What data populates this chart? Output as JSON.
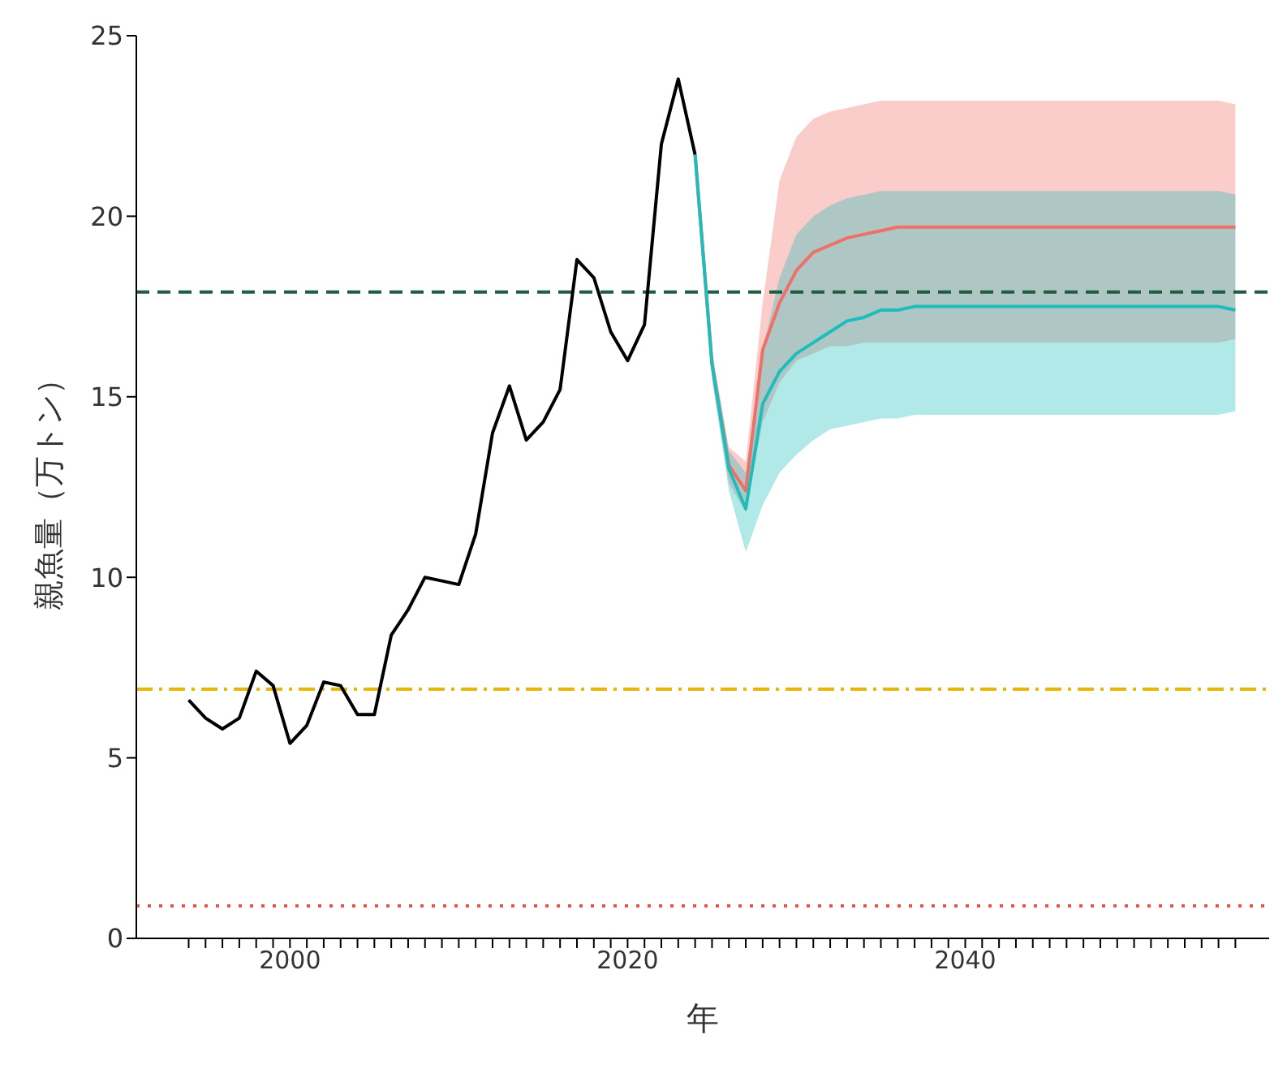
{
  "chart_data": {
    "type": "line",
    "xlabel": "年",
    "ylabel": "親魚量（万トン）",
    "xlim": [
      1990.9,
      2058
    ],
    "ylim": [
      0,
      25
    ],
    "yticks": [
      0,
      5,
      10,
      15,
      20,
      25
    ],
    "xticks": [
      {
        "value": 1994,
        "label": null
      },
      {
        "value": 1995,
        "label": null
      },
      {
        "value": 1996,
        "label": null
      },
      {
        "value": 1997,
        "label": null
      },
      {
        "value": 1998,
        "label": null
      },
      {
        "value": 1999,
        "label": null
      },
      2000,
      {
        "value": 2001,
        "label": null
      },
      {
        "value": 2002,
        "label": null
      },
      {
        "value": 2003,
        "label": null
      },
      {
        "value": 2004,
        "label": null
      },
      {
        "value": 2005,
        "label": null
      },
      {
        "value": 2006,
        "label": null
      },
      {
        "value": 2007,
        "label": null
      },
      {
        "value": 2008,
        "label": null
      },
      {
        "value": 2009,
        "label": null
      },
      {
        "value": 2010,
        "label": null
      },
      {
        "value": 2011,
        "label": null
      },
      {
        "value": 2012,
        "label": null
      },
      {
        "value": 2013,
        "label": null
      },
      {
        "value": 2014,
        "label": null
      },
      {
        "value": 2015,
        "label": null
      },
      {
        "value": 2016,
        "label": null
      },
      {
        "value": 2017,
        "label": null
      },
      {
        "value": 2018,
        "label": null
      },
      {
        "value": 2019,
        "label": null
      },
      2020,
      {
        "value": 2021,
        "label": null
      },
      {
        "value": 2022,
        "label": null
      },
      {
        "value": 2023,
        "label": null
      },
      {
        "value": 2024,
        "label": null
      },
      {
        "value": 2025,
        "label": null
      },
      {
        "value": 2026,
        "label": null
      },
      {
        "value": 2027,
        "label": null
      },
      {
        "value": 2028,
        "label": null
      },
      {
        "value": 2029,
        "label": null
      },
      {
        "value": 2030,
        "label": null
      },
      {
        "value": 2031,
        "label": null
      },
      {
        "value": 2032,
        "label": null
      },
      {
        "value": 2033,
        "label": null
      },
      {
        "value": 2034,
        "label": null
      },
      {
        "value": 2035,
        "label": null
      },
      {
        "value": 2036,
        "label": null
      },
      {
        "value": 2037,
        "label": null
      },
      {
        "value": 2038,
        "label": null
      },
      {
        "value": 2039,
        "label": null
      },
      2040,
      {
        "value": 2041,
        "label": null
      },
      {
        "value": 2042,
        "label": null
      },
      {
        "value": 2043,
        "label": null
      },
      {
        "value": 2044,
        "label": null
      },
      {
        "value": 2045,
        "label": null
      },
      {
        "value": 2046,
        "label": null
      },
      {
        "value": 2047,
        "label": null
      },
      {
        "value": 2048,
        "label": null
      },
      {
        "value": 2049,
        "label": null
      },
      {
        "value": 2050,
        "label": null
      },
      {
        "value": 2051,
        "label": null
      },
      {
        "value": 2052,
        "label": null
      },
      {
        "value": 2053,
        "label": null
      },
      {
        "value": 2054,
        "label": null
      },
      {
        "value": 2055,
        "label": null
      },
      {
        "value": 2056,
        "label": null
      }
    ],
    "marker": "none",
    "line_style": "solid",
    "series": [
      {
        "color": "#000000",
        "x": [
          1994,
          1995,
          1996,
          1997,
          1998,
          1999,
          2000,
          2001,
          2002,
          2003,
          2004,
          2005,
          2006,
          2007,
          2008,
          2009,
          2010,
          2011,
          2012,
          2013,
          2014,
          2015,
          2016,
          2017,
          2018,
          2019,
          2020,
          2021,
          2022,
          2023,
          2024
        ],
        "values": [
          6.6,
          6.1,
          5.8,
          6.1,
          7.4,
          7.0,
          5.4,
          5.9,
          7.1,
          7.0,
          6.2,
          6.2,
          8.4,
          9.1,
          10.0,
          9.9,
          9.8,
          11.2,
          14.0,
          15.3,
          13.8,
          14.3,
          15.2,
          18.8,
          18.3,
          16.8,
          16.0,
          17.0,
          22.0,
          23.8,
          21.7
        ]
      },
      {
        "color": "#f07068",
        "x": [
          2024,
          2025,
          2026,
          2027,
          2028,
          2029,
          2030,
          2031,
          2032,
          2033,
          2034,
          2035,
          2036,
          2037,
          2038,
          2039,
          2040,
          2041,
          2042,
          2043,
          2044,
          2045,
          2046,
          2047,
          2048,
          2049,
          2050,
          2051,
          2052,
          2053,
          2054,
          2055,
          2056
        ],
        "values": [
          21.7,
          15.9,
          13.1,
          12.4,
          16.3,
          17.6,
          18.5,
          19.0,
          19.2,
          19.4,
          19.5,
          19.6,
          19.7,
          19.7,
          19.7,
          19.7,
          19.7,
          19.7,
          19.7,
          19.7,
          19.7,
          19.7,
          19.7,
          19.7,
          19.7,
          19.7,
          19.7,
          19.7,
          19.7,
          19.7,
          19.7,
          19.7,
          19.7
        ],
        "lower": [
          21.7,
          15.5,
          12.6,
          11.8,
          14.3,
          15.4,
          16.0,
          16.2,
          16.4,
          16.4,
          16.5,
          16.5,
          16.5,
          16.5,
          16.5,
          16.5,
          16.5,
          16.5,
          16.5,
          16.5,
          16.5,
          16.5,
          16.5,
          16.5,
          16.5,
          16.5,
          16.5,
          16.5,
          16.5,
          16.5,
          16.5,
          16.5,
          16.6
        ],
        "upper": [
          21.7,
          16.3,
          13.6,
          13.2,
          17.6,
          21.0,
          22.2,
          22.7,
          22.9,
          23.0,
          23.1,
          23.2,
          23.2,
          23.2,
          23.2,
          23.2,
          23.2,
          23.2,
          23.2,
          23.2,
          23.2,
          23.2,
          23.2,
          23.2,
          23.2,
          23.2,
          23.2,
          23.2,
          23.2,
          23.2,
          23.2,
          23.2,
          23.1
        ]
      },
      {
        "color": "#1fbcbc",
        "x": [
          2024,
          2025,
          2026,
          2027,
          2028,
          2029,
          2030,
          2031,
          2032,
          2033,
          2034,
          2035,
          2036,
          2037,
          2038,
          2039,
          2040,
          2041,
          2042,
          2043,
          2044,
          2045,
          2046,
          2047,
          2048,
          2049,
          2050,
          2051,
          2052,
          2053,
          2054,
          2055,
          2056
        ],
        "values": [
          21.7,
          15.9,
          13.0,
          11.9,
          14.8,
          15.7,
          16.2,
          16.5,
          16.8,
          17.1,
          17.2,
          17.4,
          17.4,
          17.5,
          17.5,
          17.5,
          17.5,
          17.5,
          17.5,
          17.5,
          17.5,
          17.5,
          17.5,
          17.5,
          17.5,
          17.5,
          17.5,
          17.5,
          17.5,
          17.5,
          17.5,
          17.5,
          17.4
        ],
        "lower": [
          21.7,
          15.5,
          12.4,
          10.7,
          12.0,
          12.9,
          13.4,
          13.8,
          14.1,
          14.2,
          14.3,
          14.4,
          14.4,
          14.5,
          14.5,
          14.5,
          14.5,
          14.5,
          14.5,
          14.5,
          14.5,
          14.5,
          14.5,
          14.5,
          14.5,
          14.5,
          14.5,
          14.5,
          14.5,
          14.5,
          14.5,
          14.5,
          14.6
        ],
        "upper": [
          21.7,
          16.2,
          13.5,
          12.9,
          16.3,
          18.3,
          19.5,
          20.0,
          20.3,
          20.5,
          20.6,
          20.7,
          20.7,
          20.7,
          20.7,
          20.7,
          20.7,
          20.7,
          20.7,
          20.7,
          20.7,
          20.7,
          20.7,
          20.7,
          20.7,
          20.7,
          20.7,
          20.7,
          20.7,
          20.7,
          20.7,
          20.7,
          20.6
        ]
      }
    ],
    "ref_lines": [
      {
        "axis": "y",
        "value": 17.9,
        "label": null,
        "color": "#1f5c40",
        "line_style": "dashed"
      },
      {
        "axis": "y",
        "value": 6.9,
        "label": null,
        "color": "#e6b60a",
        "line_style": "dashdot"
      },
      {
        "axis": "y",
        "value": 0.9,
        "label": null,
        "color": "#e8534a",
        "line_style": "dotted"
      }
    ]
  }
}
